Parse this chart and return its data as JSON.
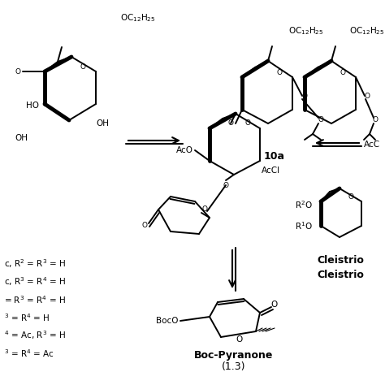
{
  "background_color": "#ffffff",
  "figsize": [
    4.74,
    4.74
  ],
  "dpi": 100,
  "left_text_lines": [
    "c, R$^{2}$ = R$^{3}$ = H",
    "c, R$^{3}$ = R$^{4}$ = H",
    "= R$^{3}$ = R$^{4}$ = H",
    "$^{3}$ = R$^{4}$ = H",
    "$^{4}$ = Ac, R$^{3}$ = H",
    "$^{3}$ = R$^{4}$ = Ac"
  ],
  "boc_label": "Boc-Pyranone",
  "boc_num": "(1.3)",
  "compound_10a": "10a",
  "cleistrio1": "Cleistrio",
  "cleistrio2": "Cleistrio",
  "oc12h25": "OC$_{12}$H$_{25}$",
  "aco": "AcO",
  "accl": "AcCl",
  "boco": "BocO",
  "r2o": "R$^{2}$O",
  "r1o": "R$^{1}$O",
  "acc_right": "AcC",
  "ho": "HO",
  "oh": "OH"
}
